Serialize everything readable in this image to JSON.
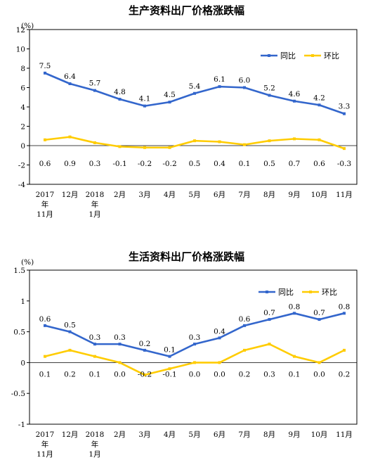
{
  "chart_data": [
    {
      "type": "line",
      "title": "生产资料出厂价格涨跌幅",
      "ylabel": "(%)",
      "ylim": [
        -4,
        12
      ],
      "yticks": [
        "12",
        "10",
        "8",
        "6",
        "4",
        "2",
        "0",
        "-2",
        "-4"
      ],
      "categories": [
        [
          "2017",
          "年",
          "11月"
        ],
        [
          "12月"
        ],
        [
          "2018",
          "年",
          "1月"
        ],
        [
          "2月"
        ],
        [
          "3月"
        ],
        [
          "4月"
        ],
        [
          "5月"
        ],
        [
          "6月"
        ],
        [
          "7月"
        ],
        [
          "8月"
        ],
        [
          "9月"
        ],
        [
          "10月"
        ],
        [
          "11月"
        ]
      ],
      "legend": "top-right",
      "series": [
        {
          "name": "同比",
          "color": "#3366cc",
          "values": [
            7.5,
            6.4,
            5.7,
            4.8,
            4.1,
            4.5,
            5.4,
            6.1,
            6.0,
            5.2,
            4.6,
            4.2,
            3.3
          ],
          "labels": [
            "7.5",
            "6.4",
            "5.7",
            "4.8",
            "4.1",
            "4.5",
            "5.4",
            "6.1",
            "6.0",
            "5.2",
            "4.6",
            "4.2",
            "3.3"
          ]
        },
        {
          "name": "环比",
          "color": "#ffcc00",
          "values": [
            0.6,
            0.9,
            0.3,
            -0.1,
            -0.2,
            -0.2,
            0.5,
            0.4,
            0.1,
            0.5,
            0.7,
            0.6,
            -0.3
          ],
          "labels": [
            "0.6",
            "0.9",
            "0.3",
            "-0.1",
            "-0.2",
            "-0.2",
            "0.5",
            "0.4",
            "0.1",
            "0.5",
            "0.7",
            "0.6",
            "-0.3"
          ]
        }
      ]
    },
    {
      "type": "line",
      "title": "生活资料出厂价格涨跌幅",
      "ylabel": "(%)",
      "ylim": [
        -1,
        1.5
      ],
      "yticks": [
        "1.5",
        "1",
        "0.5",
        "0",
        "-0.5",
        "-1"
      ],
      "categories": [
        [
          "2017",
          "年",
          "11月"
        ],
        [
          "12月"
        ],
        [
          "2018",
          "年",
          "1月"
        ],
        [
          "2月"
        ],
        [
          "3月"
        ],
        [
          "4月"
        ],
        [
          "5月"
        ],
        [
          "6月"
        ],
        [
          "7月"
        ],
        [
          "8月"
        ],
        [
          "9月"
        ],
        [
          "10月"
        ],
        [
          "11月"
        ]
      ],
      "legend": "top-right",
      "series": [
        {
          "name": "同比",
          "color": "#3366cc",
          "values": [
            0.6,
            0.5,
            0.3,
            0.3,
            0.2,
            0.1,
            0.3,
            0.4,
            0.6,
            0.7,
            0.8,
            0.7,
            0.8
          ],
          "labels": [
            "0.6",
            "0.5",
            "0.3",
            "0.3",
            "0.2",
            "0.1",
            "0.3",
            "0.4",
            "0.6",
            "0.7",
            "0.8",
            "0.7",
            "0.8"
          ]
        },
        {
          "name": "环比",
          "color": "#ffcc00",
          "values": [
            0.1,
            0.2,
            0.1,
            0.0,
            -0.2,
            -0.1,
            0.0,
            0.0,
            0.2,
            0.3,
            0.1,
            0.0,
            0.2
          ],
          "labels": [
            "0.1",
            "0.2",
            "0.1",
            "0.0",
            "-0.2",
            "-0.1",
            "0.0",
            "0.0",
            "0.2",
            "0.3",
            "0.1",
            "0.0",
            "0.2"
          ]
        }
      ]
    }
  ]
}
